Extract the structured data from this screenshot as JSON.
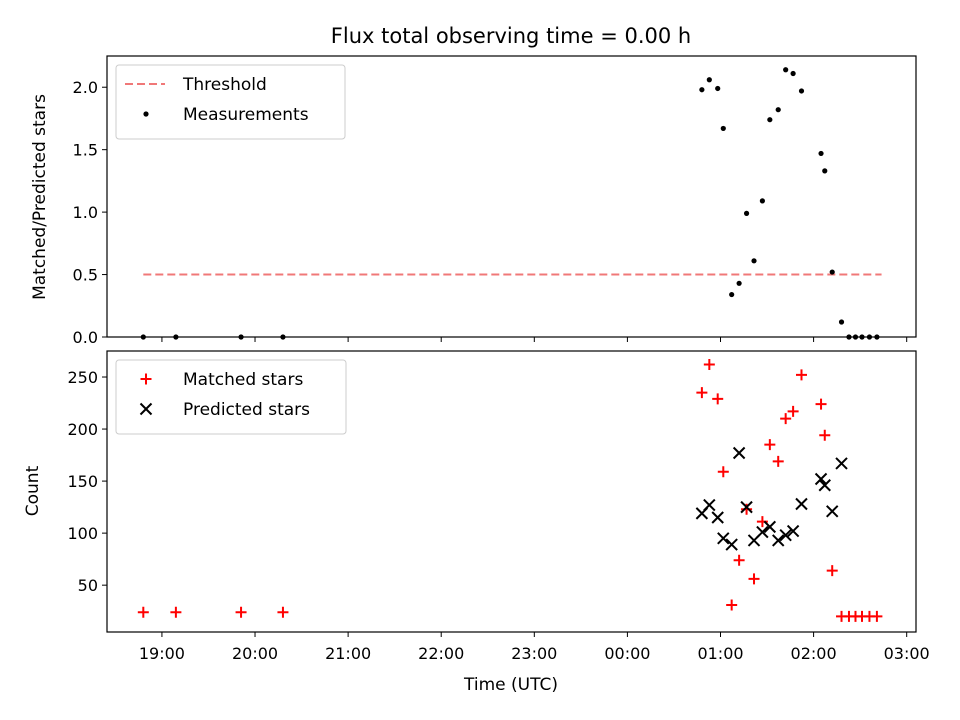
{
  "chart_data": {
    "title": "Flux total observing time = 0.00 h",
    "xlabel": "Time (UTC)",
    "x_ticks": [
      "19:00",
      "20:00",
      "21:00",
      "22:00",
      "23:00",
      "00:00",
      "01:00",
      "02:00",
      "03:00"
    ],
    "xlim_hours": [
      18.41,
      27.1
    ],
    "panels": [
      {
        "type": "scatter",
        "ylabel": "Matched/Predicted stars",
        "ylim": [
          0,
          2.25
        ],
        "y_ticks": [
          0.0,
          0.5,
          1.0,
          1.5,
          2.0
        ],
        "y_tick_labels": [
          "0.0",
          "0.5",
          "1.0",
          "1.5",
          "2.0"
        ],
        "legend": "top-left",
        "threshold": {
          "name": "Threshold",
          "value": 0.5,
          "x_range_hours": [
            18.8,
            26.73
          ],
          "color": "#f07878",
          "style": "dashed"
        },
        "series": [
          {
            "name": "Measurements",
            "color": "#000000",
            "marker": "dot",
            "x_hours": [
              18.8,
              19.15,
              19.85,
              20.3,
              24.8,
              24.88,
              24.97,
              25.03,
              25.12,
              25.2,
              25.28,
              25.36,
              25.45,
              25.53,
              25.62,
              25.7,
              25.78,
              25.87,
              26.08,
              26.12,
              26.2,
              26.3,
              26.38,
              26.45,
              26.52,
              26.6,
              26.68
            ],
            "y": [
              0.0,
              0.0,
              0.0,
              0.0,
              1.98,
              2.06,
              1.99,
              1.67,
              0.34,
              0.43,
              0.99,
              0.61,
              1.09,
              1.74,
              1.82,
              2.14,
              2.11,
              1.97,
              1.47,
              1.33,
              0.52,
              0.12,
              0.0,
              0.0,
              0.0,
              0.0,
              0.0
            ]
          }
        ]
      },
      {
        "type": "scatter",
        "ylabel": "Count",
        "ylim": [
          5,
          275
        ],
        "y_ticks": [
          50,
          100,
          150,
          200,
          250
        ],
        "y_tick_labels": [
          "50",
          "100",
          "150",
          "200",
          "250"
        ],
        "legend": "top-left",
        "series": [
          {
            "name": "Matched stars",
            "color": "#ff0000",
            "marker": "plus",
            "x_hours": [
              18.8,
              19.15,
              19.85,
              20.3,
              24.8,
              24.88,
              24.97,
              25.03,
              25.12,
              25.2,
              25.28,
              25.36,
              25.45,
              25.53,
              25.62,
              25.7,
              25.78,
              25.87,
              26.08,
              26.12,
              26.2,
              26.3,
              26.38,
              26.45,
              26.52,
              26.6,
              26.68
            ],
            "y": [
              24,
              24,
              24,
              24,
              235,
              262,
              229,
              159,
              31,
              74,
              123,
              56,
              111,
              185,
              169,
              210,
              217,
              252,
              224,
              194,
              64,
              20,
              20,
              20,
              20,
              20,
              20
            ]
          },
          {
            "name": "Predicted stars",
            "color": "#000000",
            "marker": "x",
            "x_hours": [
              24.8,
              24.88,
              24.97,
              25.03,
              25.12,
              25.2,
              25.28,
              25.36,
              25.45,
              25.53,
              25.62,
              25.7,
              25.78,
              25.87,
              26.08,
              26.12,
              26.2,
              26.3
            ],
            "y": [
              119,
              127,
              115,
              95,
              89,
              177,
              125,
              93,
              101,
              106,
              93,
              98,
              102,
              128,
              152,
              146,
              121,
              167
            ]
          }
        ]
      }
    ]
  }
}
